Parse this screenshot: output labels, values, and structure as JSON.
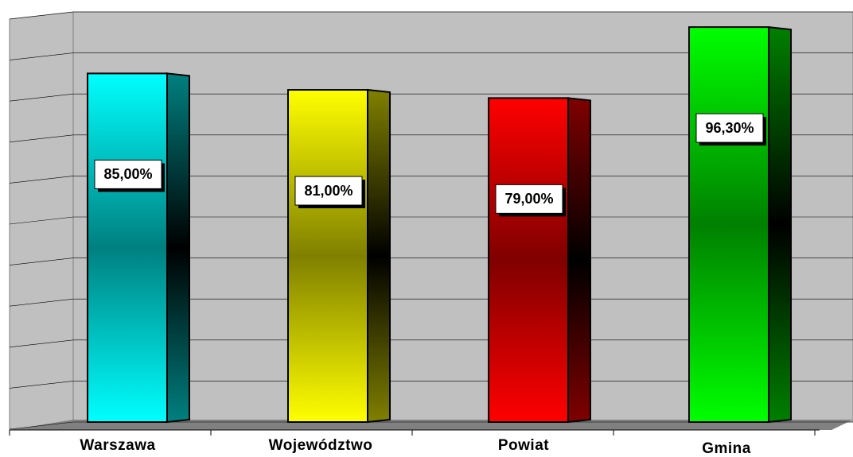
{
  "chart_data": {
    "type": "bar",
    "categories": [
      "Warszawa",
      "Województwo",
      "Powiat",
      "Gmina"
    ],
    "values": [
      85,
      81,
      79,
      96.3
    ],
    "value_labels": [
      "85,00%",
      "81,00%",
      "79,00%",
      "96,30%"
    ],
    "colors": [
      "#00ffff",
      "#ffff00",
      "#ff0000",
      "#00ff00"
    ],
    "ylim": [
      0,
      100
    ],
    "yticks": [
      0,
      10,
      20,
      30,
      40,
      50,
      60,
      70,
      80,
      90,
      100
    ],
    "grid": true
  }
}
